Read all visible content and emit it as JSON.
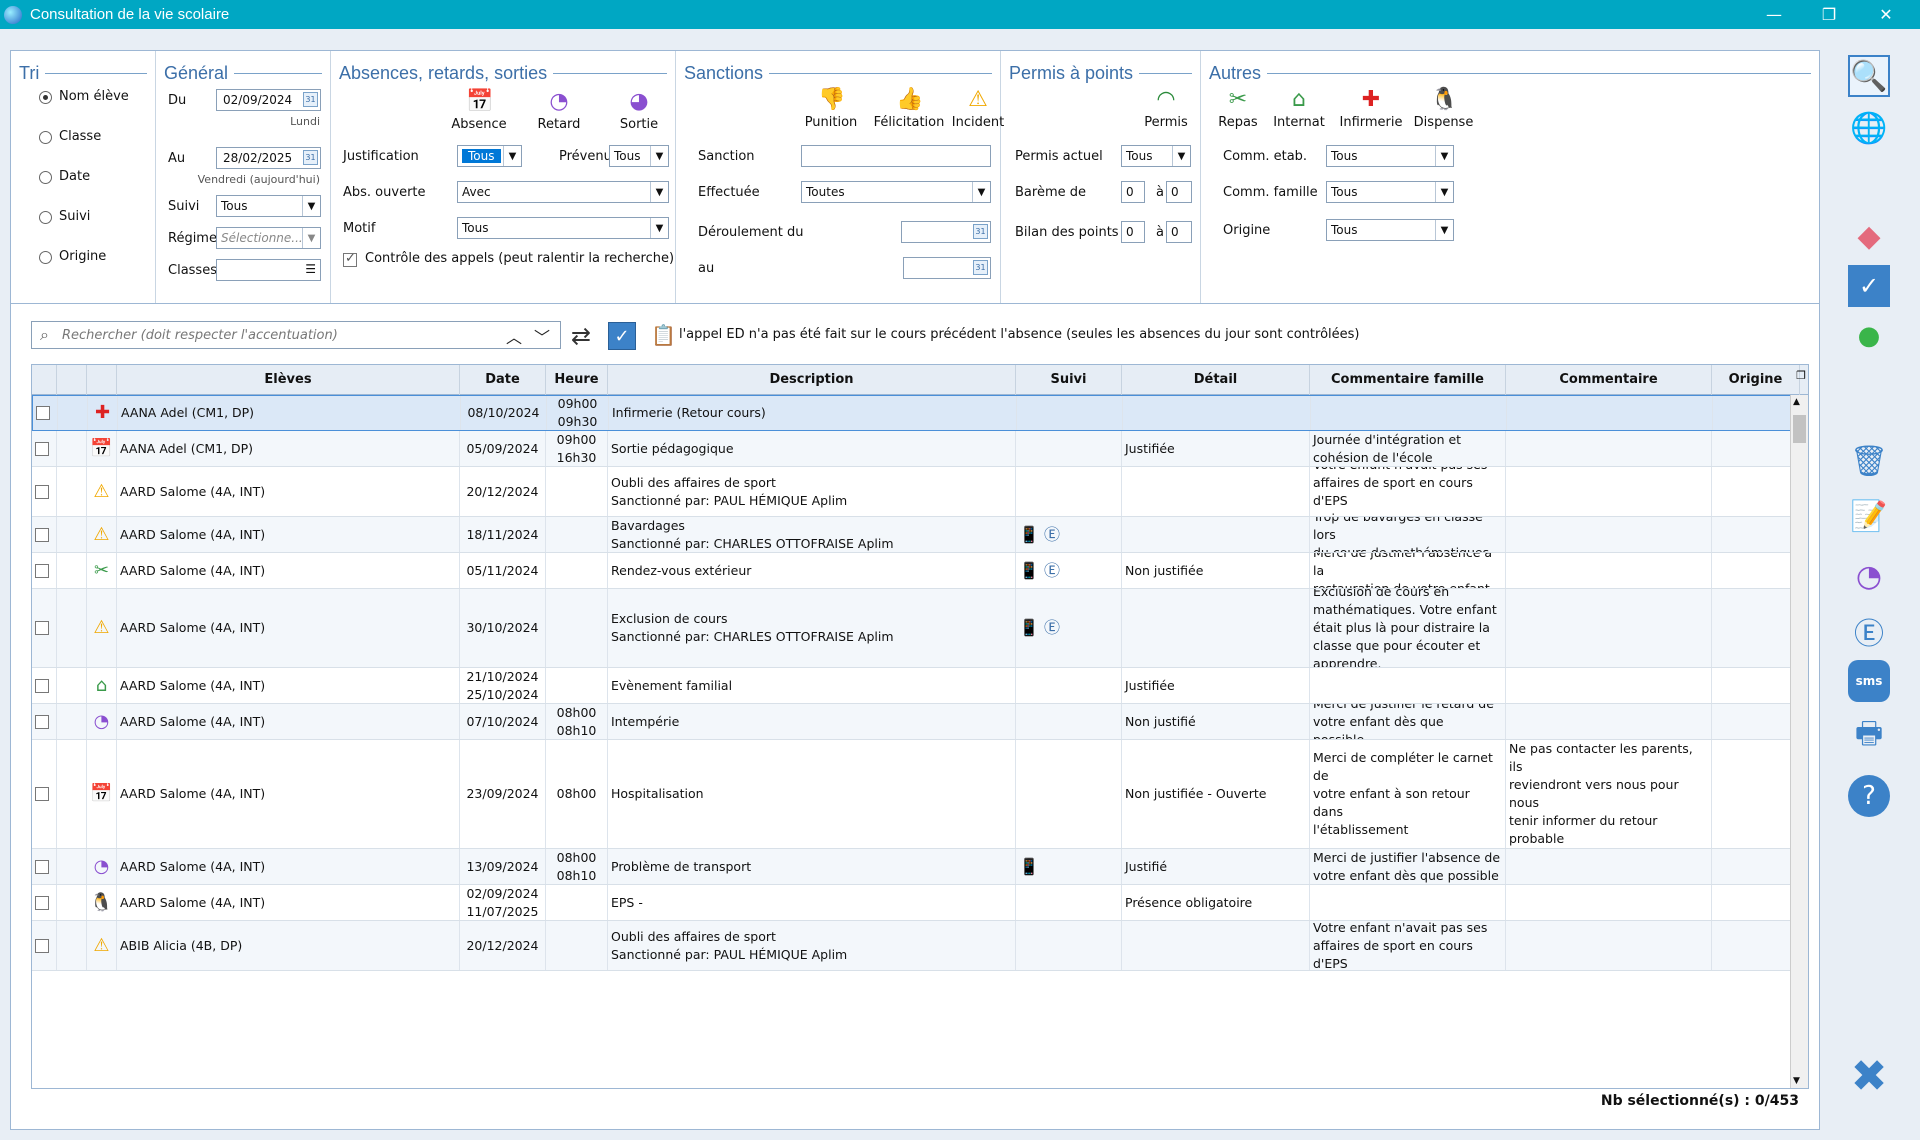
{
  "window": {
    "title": "Consultation de la vie scolaire"
  },
  "tri": {
    "legend": "Tri",
    "options": [
      "Nom élève",
      "Classe",
      "Date",
      "Suivi",
      "Origine"
    ],
    "selected": 0
  },
  "general": {
    "legend": "Général",
    "du_label": "Du",
    "du_value": "02/09/2024",
    "du_day": "Lundi",
    "au_label": "Au",
    "au_value": "28/02/2025",
    "au_day": "Vendredi (aujourd'hui)",
    "suivi_label": "Suivi",
    "suivi_value": "Tous",
    "regime_label": "Régime",
    "regime_placeholder": "Sélectionne...",
    "classes_label": "Classes",
    "classes_value": ""
  },
  "absences": {
    "legend": "Absences, retards, sorties",
    "buttons": [
      "Absence",
      "Retard",
      "Sortie"
    ],
    "justification_label": "Justification",
    "justification_value": "Tous",
    "prevenu_label": "Prévenu",
    "prevenu_value": "Tous",
    "abs_ouverte_label": "Abs. ouverte",
    "abs_ouverte_value": "Avec",
    "motif_label": "Motif",
    "motif_value": "Tous",
    "controle_label": "Contrôle des appels (peut ralentir la recherche)"
  },
  "sanctions": {
    "legend": "Sanctions",
    "buttons": [
      "Punition",
      "Félicitation",
      "Incident"
    ],
    "sanction_label": "Sanction",
    "sanction_value": "",
    "effectuee_label": "Effectuée",
    "effectuee_value": "Toutes",
    "deroulement_label": "Déroulement du",
    "au_label": "au"
  },
  "permis": {
    "legend": "Permis à points",
    "button": "Permis",
    "actuel_label": "Permis actuel",
    "actuel_value": "Tous",
    "bareme_label": "Barème de",
    "bareme_from": "0",
    "bareme_to": "0",
    "bilan_label": "Bilan des points",
    "bilan_from": "0",
    "bilan_to": "0",
    "a_label": "à"
  },
  "autres": {
    "legend": "Autres",
    "buttons": [
      "Repas",
      "Internat",
      "Infirmerie",
      "Dispense"
    ],
    "comm_etab_label": "Comm. etab.",
    "comm_etab_value": "Tous",
    "comm_famille_label": "Comm. famille",
    "comm_famille_value": "Tous",
    "origine_label": "Origine",
    "origine_value": "Tous"
  },
  "search": {
    "placeholder": "Rechercher (doit respecter l'accentuation)",
    "notice": "l'appel ED n'a pas été fait sur le cours précédent l'absence (seules les absences du jour sont contrôlées)"
  },
  "table": {
    "columns": [
      "Elèves",
      "Date",
      "Heure",
      "Description",
      "Suivi",
      "Détail",
      "Commentaire famille",
      "Commentaire établissement",
      "Origine"
    ],
    "rows": [
      {
        "icon": "infirmerie",
        "eleve": "AANA Adel (CM1, DP)",
        "date": "08/10/2024",
        "heure": "09h00\n09h30",
        "description": "Infirmerie (Retour cours)",
        "suivi": "",
        "detail": "",
        "com_famille": "",
        "com_etab": "",
        "origine": ""
      },
      {
        "icon": "absence",
        "eleve": "AANA Adel (CM1, DP)",
        "date": "05/09/2024",
        "heure": "09h00\n16h30",
        "description": "Sortie pédagogique",
        "suivi": "",
        "detail": "Justifiée",
        "com_famille": "Journée d'intégration et\ncohésion de l'école",
        "com_etab": "",
        "origine": ""
      },
      {
        "icon": "incident",
        "eleve": "AARD Salome (4A, INT)",
        "date": "20/12/2024",
        "heure": "",
        "description": "Oubli des affaires de sport\nSanctionné par: PAUL HÉMIQUE Aplim",
        "suivi": "",
        "detail": "",
        "com_famille": "Votre enfant n'avait pas ses\naffaires de sport en cours d'EPS\nce jour.",
        "com_etab": "",
        "origine": ""
      },
      {
        "icon": "incident",
        "eleve": "AARD Salome (4A, INT)",
        "date": "18/11/2024",
        "heure": "",
        "description": "Bavardages\nSanctionné par: CHARLES OTTOFRAISE Aplim",
        "suivi": "📱 Ⓔ",
        "detail": "",
        "com_famille": "Trop de bavarges en classe lors\ndu cours de mathématiques.",
        "com_etab": "",
        "origine": ""
      },
      {
        "icon": "repas",
        "eleve": "AARD Salome (4A, INT)",
        "date": "05/11/2024",
        "heure": "",
        "description": "Rendez-vous extérieur",
        "suivi": "📱 Ⓔ",
        "detail": "Non justifiée",
        "com_famille": "Merci de justifier l'absence à la\nrestauration de votre enfant",
        "com_etab": "",
        "origine": ""
      },
      {
        "icon": "incident",
        "eleve": "AARD Salome (4A, INT)",
        "date": "30/10/2024",
        "heure": "",
        "description": "Exclusion de cours\nSanctionné par: CHARLES OTTOFRAISE Aplim",
        "suivi": "📱 Ⓔ",
        "detail": "",
        "com_famille": "Exclusion de cours en\nmathématiques. Votre enfant\nétait plus là pour distraire la\nclasse que pour écouter et\napprendre.",
        "com_etab": "",
        "origine": ""
      },
      {
        "icon": "internat",
        "eleve": "AARD Salome (4A, INT)",
        "date": "21/10/2024\n25/10/2024",
        "heure": "",
        "description": "Evènement familial",
        "suivi": "",
        "detail": "Justifiée",
        "com_famille": "",
        "com_etab": "",
        "origine": ""
      },
      {
        "icon": "retard",
        "eleve": "AARD Salome (4A, INT)",
        "date": "07/10/2024",
        "heure": "08h00\n08h10",
        "description": "Intempérie",
        "suivi": "",
        "detail": "Non justifié",
        "com_famille": "Merci de justifier le retard de\nvotre enfant dès que possible.",
        "com_etab": "",
        "origine": ""
      },
      {
        "icon": "absence",
        "eleve": "AARD Salome (4A, INT)",
        "date": "23/09/2024",
        "heure": "08h00",
        "description": "Hospitalisation",
        "suivi": "",
        "detail": "Non justifiée - Ouverte",
        "com_famille": "Merci de compléter le carnet de\nvotre enfant à son retour dans\nl'établissement",
        "com_etab": "Enfant avec de gros soucis de\nsanté, hospitalisation\nNe pas contacter les parents, ils\nreviendront vers nous pour nous\ntenir informer du retour probable\nde leur enfant dès qu'ils s'en\nsauront plus.",
        "origine": ""
      },
      {
        "icon": "retard",
        "eleve": "AARD Salome (4A, INT)",
        "date": "13/09/2024",
        "heure": "08h00\n08h10",
        "description": "Problème de transport",
        "suivi": "📱",
        "detail": "Justifié",
        "com_famille": "Merci de justifier l'absence de\nvotre enfant dès que possible",
        "com_etab": "",
        "origine": ""
      },
      {
        "icon": "dispense",
        "eleve": "AARD Salome (4A, INT)",
        "date": "02/09/2024\n11/07/2025",
        "heure": "",
        "description": "EPS -",
        "suivi": "",
        "detail": "Présence obligatoire",
        "com_famille": "",
        "com_etab": "",
        "origine": ""
      },
      {
        "icon": "incident",
        "eleve": "ABIB Alicia (4B, DP)",
        "date": "20/12/2024",
        "heure": "",
        "description": "Oubli des affaires de sport\nSanctionné par: PAUL HÉMIQUE Aplim",
        "suivi": "",
        "detail": "",
        "com_famille": "Votre enfant n'avait pas ses\naffaires de sport en cours d'EPS",
        "com_etab": "",
        "origine": ""
      }
    ]
  },
  "footer": {
    "count": "Nb sélectionné(s) : 0/453"
  },
  "colors": {
    "titlebar": "#00a7c3",
    "accent": "#3c6fa8",
    "selection": "#dbe8f7"
  }
}
